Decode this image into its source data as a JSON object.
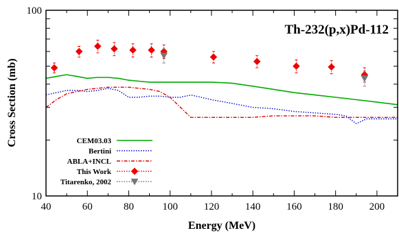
{
  "chart_data": {
    "type": "line",
    "title": "Th-232(p,x)Pd-112",
    "xlabel": "Energy (MeV)",
    "ylabel": "Cross Section (mb)",
    "xlim": [
      40,
      210
    ],
    "ylim": [
      10,
      100
    ],
    "yscale": "log",
    "x_tick_labels": [
      "40",
      "60",
      "80",
      "100",
      "120",
      "140",
      "160",
      "180",
      "200"
    ],
    "x_ticks": [
      40,
      60,
      80,
      100,
      120,
      140,
      160,
      180,
      200
    ],
    "y_tick_labels": [
      "10",
      "100"
    ],
    "y_ticks": [
      10,
      100
    ],
    "grid": false,
    "legend_position": "bottom-left",
    "series": [
      {
        "name": "CEM03.03",
        "color": "#00aa00",
        "style": "solid",
        "kind": "line",
        "x": [
          40,
          45,
          50,
          55,
          60,
          65,
          70,
          75,
          80,
          85,
          90,
          95,
          100,
          110,
          120,
          130,
          140,
          150,
          160,
          170,
          180,
          190,
          200,
          210
        ],
        "y": [
          43,
          44,
          45,
          44,
          43,
          43.5,
          43.5,
          43,
          42,
          41.5,
          41,
          41,
          41,
          41,
          41,
          40.5,
          39,
          37.5,
          36,
          35,
          34,
          33,
          32,
          31
        ]
      },
      {
        "name": "Bertini",
        "color": "#0000cc",
        "style": "dotted",
        "kind": "line",
        "x": [
          40,
          45,
          50,
          55,
          60,
          65,
          70,
          75,
          80,
          85,
          90,
          95,
          100,
          105,
          110,
          115,
          120,
          130,
          140,
          150,
          160,
          170,
          180,
          185,
          190,
          195,
          200,
          210
        ],
        "y": [
          35,
          36,
          37,
          37,
          36.5,
          37,
          38,
          37,
          34,
          34,
          34.5,
          34.5,
          34,
          34,
          35,
          34,
          33,
          31.5,
          30,
          29.5,
          28.5,
          28,
          27.5,
          27,
          24.5,
          26,
          26,
          26
        ]
      },
      {
        "name": "ABLA+INCL",
        "color": "#dd0000",
        "style": "dashdot",
        "kind": "line",
        "x": [
          40,
          45,
          50,
          55,
          60,
          65,
          70,
          75,
          80,
          85,
          90,
          95,
          100,
          105,
          110,
          120,
          130,
          140,
          150,
          160,
          170,
          180,
          190,
          200,
          210
        ],
        "y": [
          30,
          33,
          35.5,
          36.5,
          37.5,
          38,
          38.5,
          38.5,
          38.5,
          38,
          37.5,
          36.5,
          34,
          30,
          26.5,
          26.5,
          26.5,
          26.5,
          27,
          27,
          27,
          26.5,
          26.5,
          26.5,
          26.5
        ]
      },
      {
        "name": "This Work",
        "color": "#ee0000",
        "style": "dotted",
        "kind": "points",
        "marker": "diamond",
        "x": [
          44,
          56,
          65,
          73,
          82,
          91,
          97,
          121,
          142,
          161,
          178,
          194
        ],
        "y": [
          49,
          60,
          64,
          62,
          61,
          61,
          60,
          56,
          53,
          50,
          49.5,
          45
        ],
        "err": [
          3,
          4,
          5,
          5,
          5,
          5,
          5,
          4,
          4,
          4,
          4,
          4
        ]
      },
      {
        "name": "Titarenko, 2002",
        "color": "#777777",
        "style": "dotted",
        "kind": "points",
        "marker": "triangle-down",
        "x": [
          97,
          194
        ],
        "y": [
          57,
          43
        ],
        "err": [
          5,
          4
        ]
      }
    ]
  }
}
